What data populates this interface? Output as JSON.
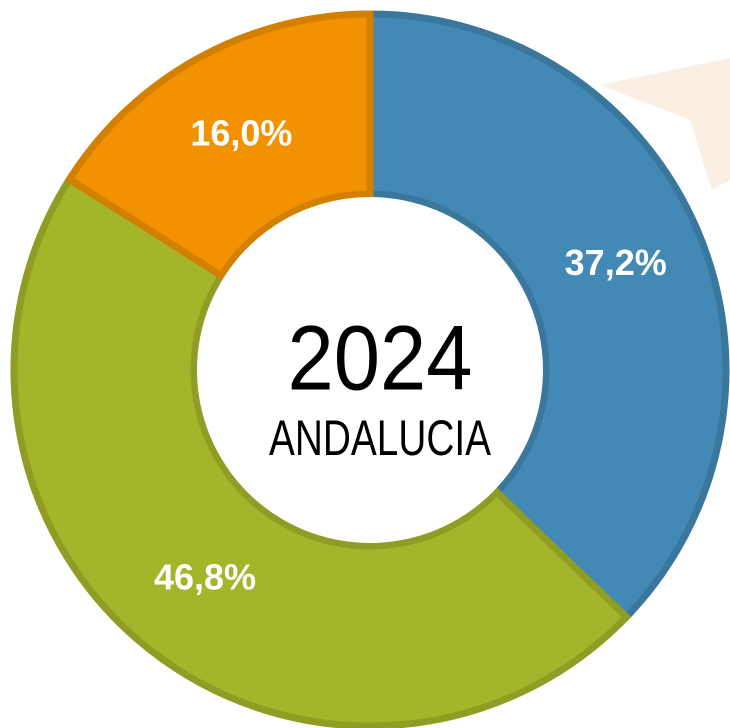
{
  "chart_data": {
    "type": "donut",
    "title": "2024",
    "subtitle": "ANDALUCIA",
    "categories": [
      null,
      null,
      null
    ],
    "values": [
      37.2,
      46.8,
      16.0
    ],
    "value_labels": [
      "37,2%",
      "46,8%",
      "16,0%"
    ],
    "colors": [
      "#4389b5",
      "#a5b52a",
      "#f39200"
    ]
  }
}
